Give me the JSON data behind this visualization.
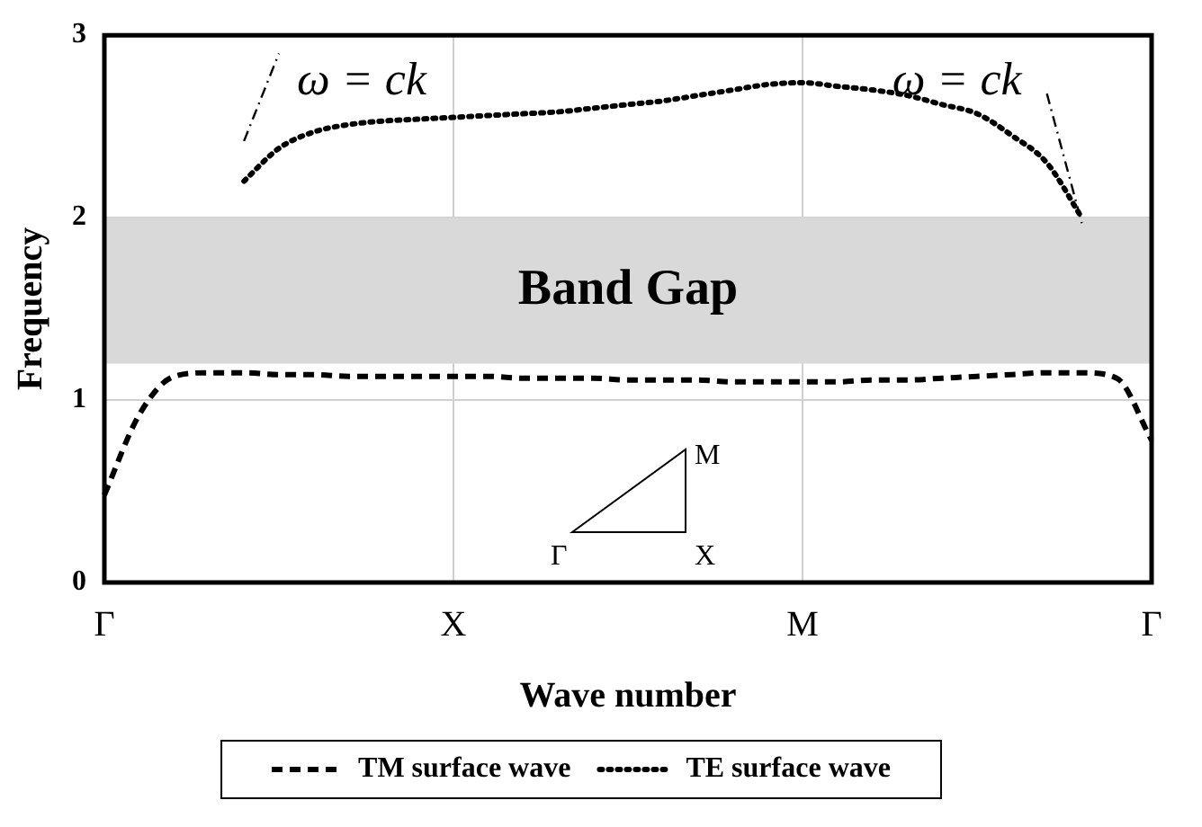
{
  "chart_data": {
    "type": "line",
    "xlabel": "Wave number",
    "ylabel": "Frequency",
    "categories": [
      "Γ",
      null,
      null,
      null,
      null,
      null,
      null,
      null,
      null,
      null,
      "X",
      null,
      null,
      null,
      null,
      null,
      null,
      null,
      null,
      null,
      "M",
      null,
      null,
      null,
      null,
      null,
      null,
      null,
      null,
      null,
      "Γ"
    ],
    "ylim": [
      0,
      3
    ],
    "yticks": [
      0,
      1,
      2,
      3
    ],
    "grid": true,
    "legend": "bottom",
    "marker": "none",
    "series": [
      {
        "name": "TM surface wave",
        "color": "#000000",
        "line_style": "dashed",
        "values": [
          0.48,
          0.92,
          1.13,
          1.15,
          1.15,
          1.14,
          1.14,
          1.13,
          1.13,
          1.13,
          1.13,
          1.13,
          1.12,
          1.12,
          1.12,
          1.11,
          1.11,
          1.11,
          1.1,
          1.1,
          1.1,
          1.1,
          1.11,
          1.11,
          1.12,
          1.13,
          1.14,
          1.15,
          1.15,
          1.12,
          0.78
        ]
      },
      {
        "name": "TE surface wave",
        "color": "#000000",
        "line_style": "dotted",
        "values": [
          null,
          null,
          null,
          null,
          2.2,
          2.38,
          2.47,
          2.51,
          2.53,
          2.54,
          2.55,
          2.56,
          2.57,
          2.58,
          2.6,
          2.62,
          2.64,
          2.67,
          2.7,
          2.73,
          2.74,
          2.72,
          2.7,
          2.67,
          2.62,
          2.57,
          2.45,
          2.3,
          2.0,
          null,
          null
        ]
      },
      {
        "color": "#000000",
        "line_style": "dashed",
        "values": [
          null,
          null,
          null,
          null,
          2.42,
          2.9,
          null,
          null,
          null,
          null,
          null,
          null,
          null,
          null,
          null,
          null,
          null,
          null,
          null,
          null,
          null,
          null,
          null,
          null,
          null,
          null,
          null,
          null,
          null,
          null,
          null
        ]
      },
      {
        "color": "#000000",
        "line_style": "dashed",
        "values": [
          null,
          null,
          null,
          null,
          null,
          null,
          null,
          null,
          null,
          null,
          null,
          null,
          null,
          null,
          null,
          null,
          null,
          null,
          null,
          null,
          null,
          null,
          null,
          null,
          null,
          null,
          null,
          2.68,
          1.97,
          null,
          null
        ]
      }
    ],
    "bands": [
      {
        "axis": "y",
        "from": 1.2,
        "to": 2,
        "label": "Band Gap",
        "color": "#d9d9d9"
      }
    ],
    "annotations": [
      "ω = ck",
      "ω = ck",
      "Γ",
      "X",
      "M"
    ]
  }
}
